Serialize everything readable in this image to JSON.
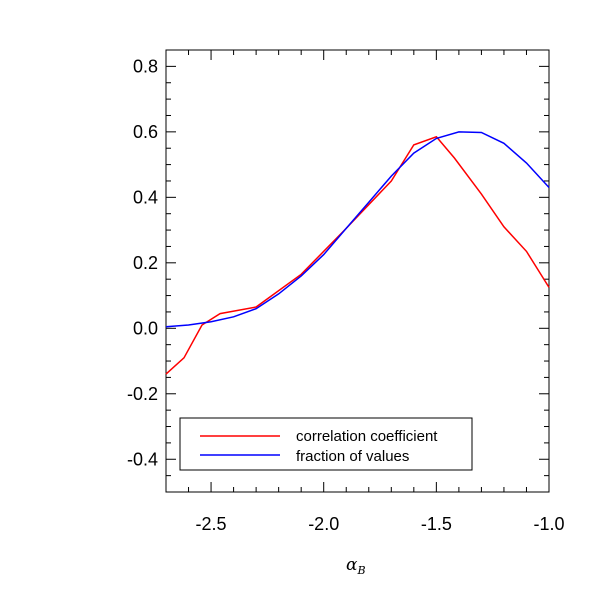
{
  "chart_data": {
    "type": "line",
    "title": "",
    "xlabel": {
      "symbol": "α",
      "subscript": "B"
    },
    "ylabel": "",
    "xlim": [
      -2.7,
      -1.0
    ],
    "ylim": [
      -0.5,
      0.85
    ],
    "xticks": [
      -2.5,
      -2.0,
      -1.5,
      -1.0
    ],
    "xtick_labels": [
      "-2.5",
      "-2.0",
      "-1.5",
      "-1.0"
    ],
    "yticks": [
      -0.4,
      -0.2,
      0.0,
      0.2,
      0.4,
      0.6,
      0.8
    ],
    "ytick_labels": [
      "-0.4",
      "-0.2",
      "0.0",
      "0.2",
      "0.4",
      "0.6",
      "0.8"
    ],
    "grid": false,
    "legend_position": "bottom-left",
    "series": [
      {
        "name": "correlation coefficient",
        "color": "#ff0000",
        "x": [
          -2.7,
          -2.62,
          -2.54,
          -2.46,
          -2.3,
          -2.1,
          -1.9,
          -1.7,
          -1.6,
          -1.5,
          -1.42,
          -1.3,
          -1.2,
          -1.1,
          -1.0
        ],
        "y": [
          -0.14,
          -0.09,
          0.01,
          0.045,
          0.065,
          0.165,
          0.305,
          0.45,
          0.56,
          0.585,
          0.52,
          0.41,
          0.31,
          0.235,
          0.125
        ]
      },
      {
        "name": "fraction of values",
        "color": "#0000ff",
        "x": [
          -2.7,
          -2.6,
          -2.5,
          -2.4,
          -2.3,
          -2.2,
          -2.1,
          -2.0,
          -1.9,
          -1.8,
          -1.7,
          -1.6,
          -1.5,
          -1.4,
          -1.3,
          -1.2,
          -1.1,
          -1.0
        ],
        "y": [
          0.005,
          0.01,
          0.02,
          0.035,
          0.06,
          0.105,
          0.16,
          0.225,
          0.305,
          0.385,
          0.465,
          0.535,
          0.58,
          0.6,
          0.598,
          0.565,
          0.505,
          0.43
        ]
      }
    ]
  }
}
